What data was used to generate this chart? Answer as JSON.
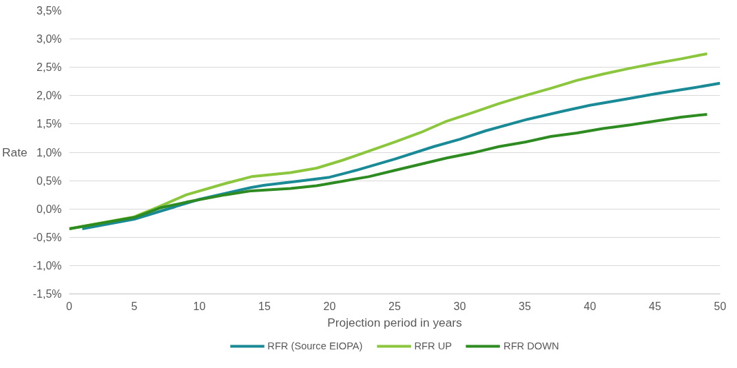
{
  "chart_data": {
    "type": "line",
    "xlabel": "Projection period in years",
    "ylabel": "Rate",
    "xlim": [
      0,
      50
    ],
    "xticks": [
      0,
      5,
      10,
      15,
      20,
      25,
      30,
      35,
      40,
      45,
      50
    ],
    "ylim": [
      -1.5,
      3.5
    ],
    "yticks": [
      {
        "value": -1.5,
        "label": "-1,5%"
      },
      {
        "value": -1.0,
        "label": "-1,0%"
      },
      {
        "value": -0.5,
        "label": "-0,5%"
      },
      {
        "value": 0,
        "label": "0,0%"
      },
      {
        "value": 0.5,
        "label": "0,5%"
      },
      {
        "value": 1.0,
        "label": "1,0%"
      },
      {
        "value": 1.5,
        "label": "1,5%"
      },
      {
        "value": 2.0,
        "label": "2,0%"
      },
      {
        "value": 2.5,
        "label": "2,5%"
      },
      {
        "value": 3.0,
        "label": "3,0%"
      },
      {
        "value": 3.5,
        "label": "3,5%"
      }
    ],
    "grid": "y",
    "legend": "bottom",
    "marker": "none",
    "line_style": "solid",
    "series": [
      {
        "name": "RFR (Source EIOPA)",
        "color": "#1a8a96",
        "x": [
          1,
          5,
          8,
          10,
          14,
          15,
          18,
          20,
          22,
          25,
          28,
          30,
          32,
          35,
          38,
          40,
          43,
          45,
          48,
          50
        ],
        "values": [
          -0.35,
          -0.18,
          0.03,
          0.17,
          0.38,
          0.42,
          0.5,
          0.56,
          0.68,
          0.88,
          1.1,
          1.23,
          1.38,
          1.57,
          1.73,
          1.83,
          1.95,
          2.03,
          2.14,
          2.22
        ]
      },
      {
        "name": "RFR UP",
        "color": "#8cc63f",
        "x": [
          0,
          5,
          7,
          9,
          12,
          14,
          17,
          19,
          21,
          23,
          25,
          27,
          29,
          31,
          33,
          35,
          37,
          39,
          41,
          43,
          45,
          47,
          49
        ],
        "values": [
          -0.35,
          -0.14,
          0.05,
          0.25,
          0.45,
          0.57,
          0.64,
          0.72,
          0.86,
          1.02,
          1.18,
          1.35,
          1.55,
          1.7,
          1.86,
          2.0,
          2.13,
          2.27,
          2.38,
          2.48,
          2.57,
          2.65,
          2.74
        ]
      },
      {
        "name": "RFR DOWN",
        "color": "#2e8b22",
        "x": [
          0,
          5,
          7,
          9,
          12,
          14,
          17,
          19,
          21,
          23,
          25,
          27,
          29,
          31,
          33,
          35,
          37,
          39,
          41,
          43,
          45,
          47,
          49
        ],
        "values": [
          -0.35,
          -0.15,
          0.02,
          0.12,
          0.25,
          0.32,
          0.36,
          0.41,
          0.49,
          0.57,
          0.68,
          0.79,
          0.9,
          0.99,
          1.1,
          1.18,
          1.28,
          1.34,
          1.42,
          1.48,
          1.55,
          1.62,
          1.67
        ]
      }
    ]
  }
}
